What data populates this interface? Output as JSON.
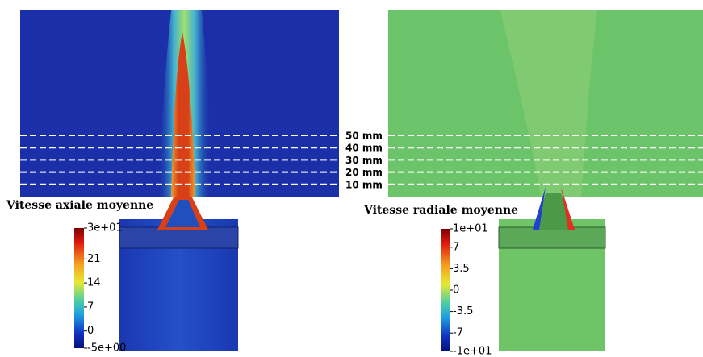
{
  "left_panel": {
    "colorbar": {
      "title": "Vitesse axiale moyenne",
      "ticks": [
        {
          "value": 30,
          "label": "3e+01"
        },
        21,
        14,
        7,
        0,
        {
          "value": -5,
          "label": "-5e+00"
        }
      ]
    }
  },
  "right_panel": {
    "colorbar": {
      "title": "Vitesse radiale moyenne",
      "ticks": [
        {
          "value": 10,
          "label": "1e+01"
        },
        7,
        3.5,
        0,
        -3.5,
        -7,
        {
          "value": -10,
          "label": "-1e+01"
        }
      ]
    }
  },
  "distances": [
    "50 mm",
    "40 mm",
    "30 mm",
    "20 mm",
    "10 mm"
  ]
}
